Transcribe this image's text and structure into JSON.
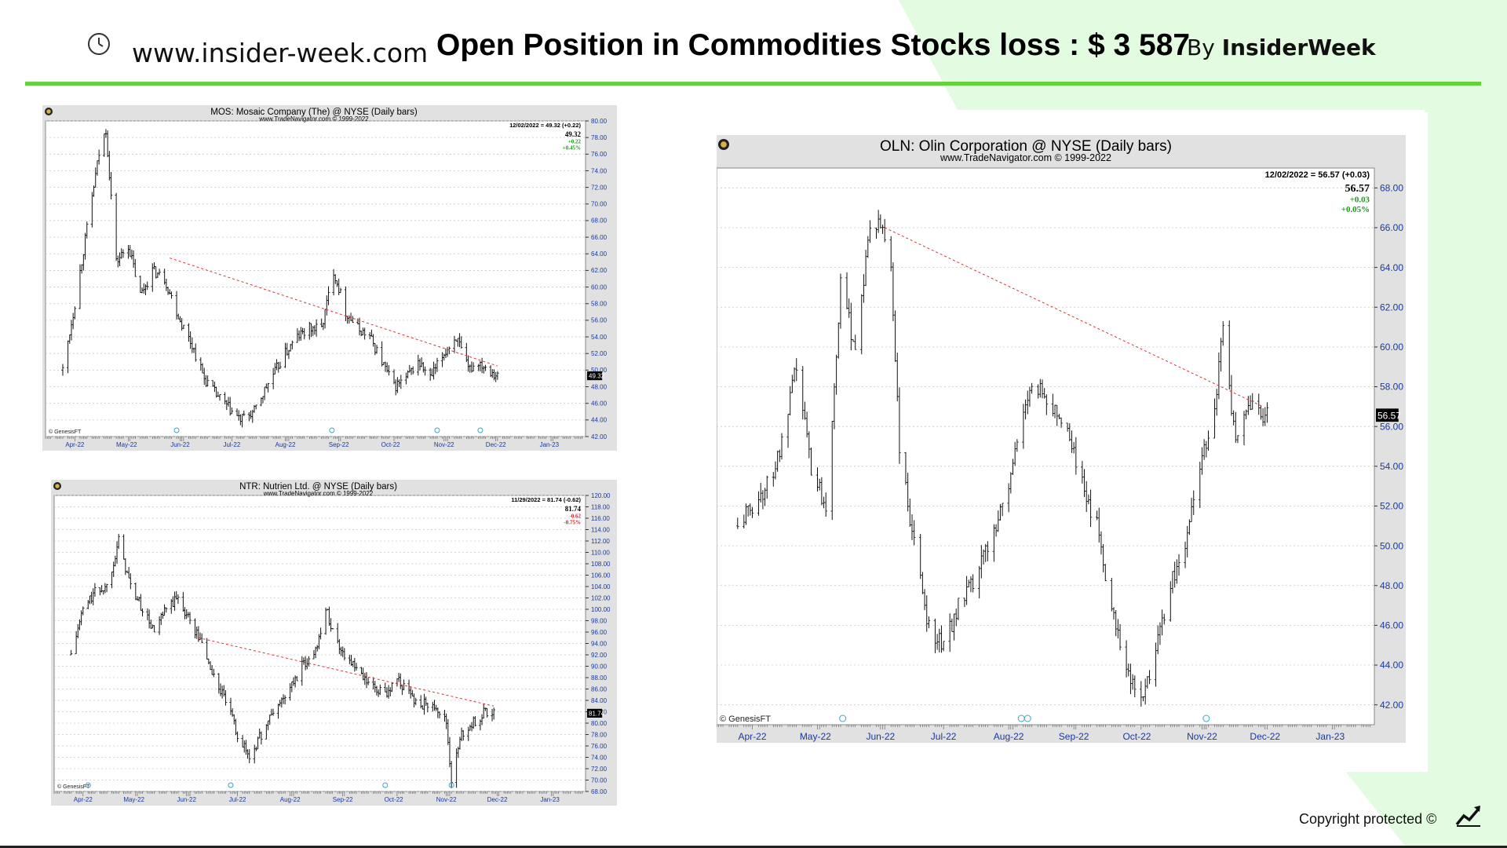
{
  "header": {
    "site_url": "www.insider-week.com",
    "headline": "Open Position in Commodities Stocks loss : $ 3 587",
    "by_prefix": "By ",
    "by_brand": "InsiderWeek",
    "clock_icon": "clock-icon"
  },
  "footer": {
    "copyright": "Copyright protected ©",
    "logo_icon": "trend-up-icon"
  },
  "colors": {
    "accent_green": "#66d13f",
    "bg_green": "#e3fbe0",
    "trend_red": "#e03030",
    "axis_blue": "#1a3aa0",
    "up_green": "#1a9a1a",
    "down_red": "#d41c1c"
  },
  "chart_data": [
    {
      "id": "mos",
      "type": "ohlc",
      "title": "MOS:  Mosaic Company (The) @ NYSE  (Daily bars)",
      "subtitle": "www.TradeNavigator.com © 1999-2022",
      "last_bar_label": "12/02/2022 = 49.32 (+0.22)",
      "quote": {
        "price": "49.32",
        "change": "+0.22",
        "pct": "+0.45%",
        "direction": "up"
      },
      "price_marker": "49.32",
      "watermark": "GenesisFT",
      "x_ticks": [
        "Apr-22",
        "May-22",
        "Jun-22",
        "Jul-22",
        "Aug-22",
        "Sep-22",
        "Oct-22",
        "Nov-22",
        "Dec-22",
        "Jan-23"
      ],
      "y_ticks": [
        "80.00",
        "78.00",
        "76.00",
        "74.00",
        "72.00",
        "70.00",
        "68.00",
        "66.00",
        "64.00",
        "62.00",
        "60.00",
        "58.00",
        "56.00",
        "54.00",
        "52.00",
        "50.00",
        "48.00",
        "46.00",
        "44.00",
        "42.00"
      ],
      "ylim": [
        42,
        80
      ],
      "price_path": [
        [
          "2022-03-25",
          50
        ],
        [
          "2022-04-01",
          58
        ],
        [
          "2022-04-08",
          67
        ],
        [
          "2022-04-15",
          76
        ],
        [
          "2022-04-19",
          79
        ],
        [
          "2022-04-25",
          63
        ],
        [
          "2022-05-02",
          65
        ],
        [
          "2022-05-09",
          59
        ],
        [
          "2022-05-16",
          62
        ],
        [
          "2022-05-23",
          61
        ],
        [
          "2022-06-01",
          56
        ],
        [
          "2022-06-08",
          53
        ],
        [
          "2022-06-15",
          49
        ],
        [
          "2022-06-22",
          47
        ],
        [
          "2022-07-01",
          45
        ],
        [
          "2022-07-06",
          44
        ],
        [
          "2022-07-14",
          45
        ],
        [
          "2022-07-21",
          48
        ],
        [
          "2022-08-01",
          52
        ],
        [
          "2022-08-08",
          54
        ],
        [
          "2022-08-15",
          55
        ],
        [
          "2022-08-22",
          55
        ],
        [
          "2022-08-29",
          62
        ],
        [
          "2022-09-05",
          57
        ],
        [
          "2022-09-12",
          55
        ],
        [
          "2022-09-19",
          54
        ],
        [
          "2022-09-26",
          51
        ],
        [
          "2022-10-03",
          48
        ],
        [
          "2022-10-10",
          49
        ],
        [
          "2022-10-17",
          51
        ],
        [
          "2022-10-24",
          49
        ],
        [
          "2022-11-01",
          52
        ],
        [
          "2022-11-08",
          54
        ],
        [
          "2022-11-15",
          50
        ],
        [
          "2022-11-21",
          51
        ],
        [
          "2022-11-28",
          50
        ],
        [
          "2022-12-02",
          49.32
        ]
      ],
      "trendline": [
        [
          "2022-05-26",
          63.5
        ],
        [
          "2022-12-02",
          50.5
        ]
      ]
    },
    {
      "id": "ntr",
      "type": "ohlc",
      "title": "NTR:  Nutrien Ltd. @ NYSE  (Daily bars)",
      "subtitle": "www.TradeNavigator.com © 1999-2022",
      "last_bar_label": "11/29/2022 = 81.74 (-0.62)",
      "quote": {
        "price": "81.74",
        "change": "-0.62",
        "pct": "-0.75%",
        "direction": "down"
      },
      "price_marker": "81.74",
      "watermark": "GenesisFT",
      "x_ticks": [
        "Apr-22",
        "May-22",
        "Jun-22",
        "Jul-22",
        "Aug-22",
        "Sep-22",
        "Oct-22",
        "Nov-22",
        "Dec-22",
        "Jan-23"
      ],
      "y_ticks": [
        "120.00",
        "118.00",
        "116.00",
        "114.00",
        "112.00",
        "110.00",
        "108.00",
        "106.00",
        "104.00",
        "102.00",
        "100.00",
        "98.00",
        "96.00",
        "94.00",
        "92.00",
        "90.00",
        "88.00",
        "86.00",
        "84.00",
        "82.00",
        "80.00",
        "78.00",
        "76.00",
        "74.00",
        "72.00",
        "70.00",
        "68.00"
      ],
      "ylim": [
        68,
        120
      ],
      "price_path": [
        [
          "2022-03-25",
          92
        ],
        [
          "2022-04-01",
          100
        ],
        [
          "2022-04-08",
          103
        ],
        [
          "2022-04-15",
          104
        ],
        [
          "2022-04-22",
          112
        ],
        [
          "2022-04-29",
          104
        ],
        [
          "2022-05-06",
          100
        ],
        [
          "2022-05-13",
          96
        ],
        [
          "2022-05-20",
          100
        ],
        [
          "2022-05-27",
          102
        ],
        [
          "2022-06-03",
          98
        ],
        [
          "2022-06-10",
          94
        ],
        [
          "2022-06-17",
          88
        ],
        [
          "2022-06-24",
          84
        ],
        [
          "2022-07-01",
          78
        ],
        [
          "2022-07-08",
          74
        ],
        [
          "2022-07-15",
          78
        ],
        [
          "2022-07-22",
          82
        ],
        [
          "2022-08-01",
          86
        ],
        [
          "2022-08-08",
          90
        ],
        [
          "2022-08-15",
          92
        ],
        [
          "2022-08-22",
          100
        ],
        [
          "2022-08-29",
          94
        ],
        [
          "2022-09-05",
          91
        ],
        [
          "2022-09-12",
          88
        ],
        [
          "2022-09-19",
          86
        ],
        [
          "2022-09-26",
          85
        ],
        [
          "2022-10-03",
          88
        ],
        [
          "2022-10-10",
          85
        ],
        [
          "2022-10-17",
          83
        ],
        [
          "2022-10-24",
          84
        ],
        [
          "2022-11-01",
          80
        ],
        [
          "2022-11-04",
          70
        ],
        [
          "2022-11-10",
          78
        ],
        [
          "2022-11-17",
          80
        ],
        [
          "2022-11-24",
          82
        ],
        [
          "2022-11-29",
          81.74
        ]
      ],
      "trendline": [
        [
          "2022-06-08",
          95
        ],
        [
          "2022-11-29",
          83
        ]
      ]
    },
    {
      "id": "oln",
      "type": "ohlc",
      "title": "OLN:  Olin Corporation @ NYSE  (Daily bars)",
      "subtitle": "www.TradeNavigator.com © 1999-2022",
      "last_bar_label": "12/02/2022 = 56.57 (+0.03)",
      "quote": {
        "price": "56.57",
        "change": "+0.03",
        "pct": "+0.05%",
        "direction": "up"
      },
      "price_marker": "56.57",
      "watermark": "GenesisFT",
      "x_ticks": [
        "Apr-22",
        "May-22",
        "Jun-22",
        "Jul-22",
        "Aug-22",
        "Sep-22",
        "Oct-22",
        "Nov-22",
        "Dec-22",
        "Jan-23"
      ],
      "y_ticks": [
        "68.00",
        "66.00",
        "64.00",
        "62.00",
        "60.00",
        "58.00",
        "56.00",
        "54.00",
        "52.00",
        "50.00",
        "48.00",
        "46.00",
        "44.00",
        "42.00"
      ],
      "ylim": [
        41,
        69
      ],
      "price_path": [
        [
          "2022-03-25",
          51
        ],
        [
          "2022-04-01",
          52
        ],
        [
          "2022-04-08",
          53
        ],
        [
          "2022-04-15",
          55
        ],
        [
          "2022-04-22",
          59
        ],
        [
          "2022-04-29",
          54
        ],
        [
          "2022-05-06",
          52
        ],
        [
          "2022-05-13",
          63
        ],
        [
          "2022-05-20",
          60
        ],
        [
          "2022-05-27",
          66
        ],
        [
          "2022-06-02",
          66
        ],
        [
          "2022-06-06",
          64
        ],
        [
          "2022-06-10",
          55
        ],
        [
          "2022-06-14",
          52
        ],
        [
          "2022-06-17",
          50
        ],
        [
          "2022-06-24",
          46
        ],
        [
          "2022-07-01",
          45
        ],
        [
          "2022-07-08",
          47
        ],
        [
          "2022-07-15",
          48
        ],
        [
          "2022-07-22",
          50
        ],
        [
          "2022-08-01",
          53
        ],
        [
          "2022-08-08",
          57
        ],
        [
          "2022-08-15",
          58
        ],
        [
          "2022-08-22",
          57
        ],
        [
          "2022-08-29",
          56
        ],
        [
          "2022-09-05",
          53
        ],
        [
          "2022-09-12",
          51
        ],
        [
          "2022-09-19",
          47
        ],
        [
          "2022-09-26",
          44
        ],
        [
          "2022-10-03",
          42
        ],
        [
          "2022-10-10",
          45
        ],
        [
          "2022-10-17",
          48
        ],
        [
          "2022-10-24",
          50
        ],
        [
          "2022-10-31",
          54
        ],
        [
          "2022-11-07",
          57
        ],
        [
          "2022-11-11",
          61
        ],
        [
          "2022-11-17",
          55
        ],
        [
          "2022-11-24",
          57
        ],
        [
          "2022-12-02",
          56.57
        ]
      ],
      "trendline": [
        [
          "2022-06-03",
          66
        ],
        [
          "2022-11-30",
          57
        ]
      ]
    }
  ]
}
